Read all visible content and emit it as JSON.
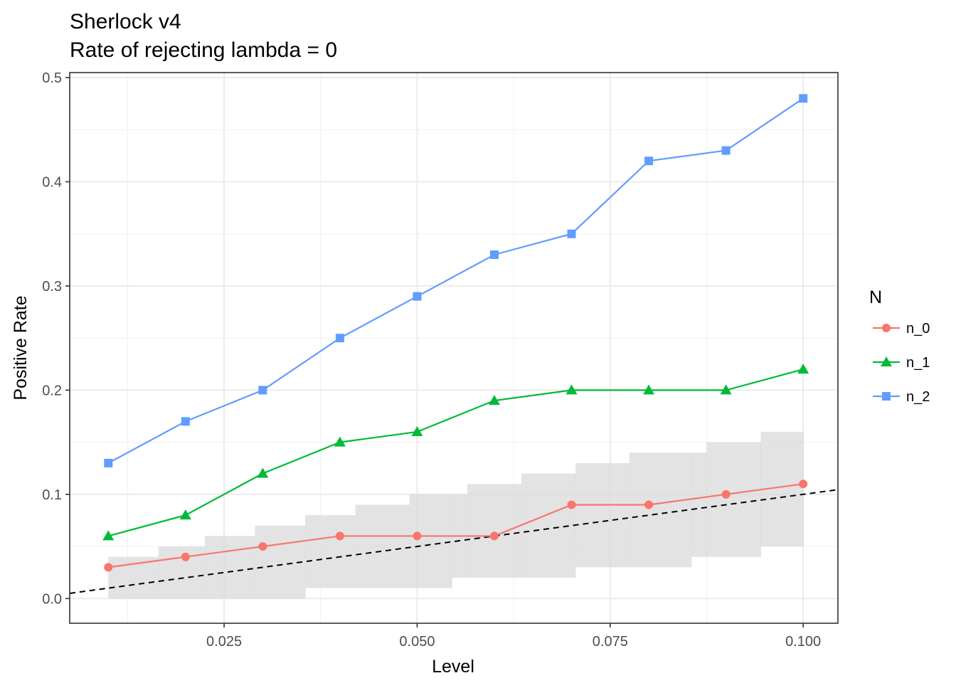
{
  "chart_data": {
    "type": "line",
    "title": "Sherlock v4",
    "subtitle": "Rate of rejecting lambda = 0",
    "xlabel": "Level",
    "ylabel": "Positive Rate",
    "xlim": [
      0.005,
      0.1045
    ],
    "ylim": [
      -0.0237,
      0.5048
    ],
    "x_ticks": [
      0.025,
      0.05,
      0.075,
      0.1
    ],
    "x_tick_labels": [
      "0.025",
      "0.050",
      "0.075",
      "0.100"
    ],
    "y_ticks": [
      0.0,
      0.1,
      0.2,
      0.3,
      0.4,
      0.5
    ],
    "y_tick_labels": [
      "0.0",
      "0.1",
      "0.2",
      "0.3",
      "0.4",
      "0.5"
    ],
    "grid": true,
    "legend": {
      "title": "N",
      "position": "right"
    },
    "x": [
      0.01,
      0.02,
      0.03,
      0.04,
      0.05,
      0.06,
      0.07,
      0.08,
      0.09,
      0.1
    ],
    "series": [
      {
        "name": "n_0",
        "color": "#F8766D",
        "marker": "circle",
        "values": [
          0.03,
          0.04,
          0.05,
          0.06,
          0.06,
          0.06,
          0.09,
          0.09,
          0.1,
          0.11
        ]
      },
      {
        "name": "n_1",
        "color": "#00BA38",
        "marker": "triangle",
        "values": [
          0.06,
          0.08,
          0.12,
          0.15,
          0.16,
          0.19,
          0.2,
          0.2,
          0.2,
          0.22
        ]
      },
      {
        "name": "n_2",
        "color": "#619CFF",
        "marker": "square",
        "values": [
          0.13,
          0.17,
          0.2,
          0.25,
          0.29,
          0.33,
          0.35,
          0.42,
          0.43,
          0.48
        ]
      }
    ],
    "reference_line": {
      "slope": 1,
      "intercept": 0,
      "style": "dashed",
      "color": "#000000"
    },
    "band": {
      "color": "#d9d9d9",
      "steps": [
        {
          "x": [
            0.01,
            0.0165
          ],
          "low": 0.0,
          "high": 0.04
        },
        {
          "x": [
            0.0165,
            0.0225
          ],
          "low": 0.0,
          "high": 0.05
        },
        {
          "x": [
            0.0225,
            0.029
          ],
          "low": 0.0,
          "high": 0.06
        },
        {
          "x": [
            0.029,
            0.0355
          ],
          "low": 0.0,
          "high": 0.07
        },
        {
          "x": [
            0.0355,
            0.042
          ],
          "low": 0.01,
          "high": 0.08
        },
        {
          "x": [
            0.042,
            0.049
          ],
          "low": 0.01,
          "high": 0.09
        },
        {
          "x": [
            0.049,
            0.0545
          ],
          "low": 0.01,
          "high": 0.1
        },
        {
          "x": [
            0.0545,
            0.0565
          ],
          "low": 0.02,
          "high": 0.1
        },
        {
          "x": [
            0.0565,
            0.0635
          ],
          "low": 0.02,
          "high": 0.11
        },
        {
          "x": [
            0.0635,
            0.0705
          ],
          "low": 0.02,
          "high": 0.12
        },
        {
          "x": [
            0.0705,
            0.0775
          ],
          "low": 0.03,
          "high": 0.13
        },
        {
          "x": [
            0.0775,
            0.0855
          ],
          "low": 0.03,
          "high": 0.14
        },
        {
          "x": [
            0.0855,
            0.0875
          ],
          "low": 0.04,
          "high": 0.14
        },
        {
          "x": [
            0.0875,
            0.0945
          ],
          "low": 0.04,
          "high": 0.15
        },
        {
          "x": [
            0.0945,
            0.1
          ],
          "low": 0.05,
          "high": 0.16
        }
      ]
    }
  }
}
